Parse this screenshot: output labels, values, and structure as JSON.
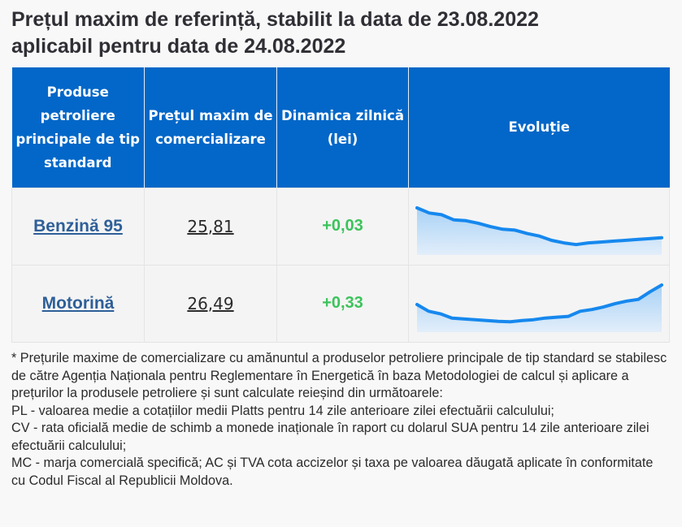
{
  "header": {
    "title_line1": "Prețul maxim de referință, stabilit la data de 23.08.2022",
    "title_line2": "aplicabil pentru data de 24.08.2022"
  },
  "table": {
    "columns": [
      "Produse petroliere principale de tip standard",
      "Prețul maxim de comercializare",
      "Dinamica zilnică (lei)",
      "Evoluție"
    ],
    "rows": [
      {
        "product": "Benzină 95",
        "price": "25,81",
        "delta": "+0,03"
      },
      {
        "product": "Motorină",
        "price": "26,49",
        "delta": "+0,33"
      }
    ]
  },
  "chart_data": [
    {
      "type": "area",
      "title": "Evoluție - Benzină 95",
      "values": [
        29.0,
        28.7,
        28.6,
        28.3,
        28.25,
        28.1,
        27.9,
        27.75,
        27.7,
        27.5,
        27.35,
        27.1,
        26.95,
        26.85,
        26.95,
        27.0,
        27.05,
        27.1,
        27.15,
        27.2,
        27.25
      ]
    },
    {
      "type": "area",
      "title": "Evoluție - Motorină",
      "values": [
        28.0,
        27.6,
        27.45,
        27.2,
        27.15,
        27.1,
        27.05,
        27.0,
        26.98,
        27.05,
        27.1,
        27.2,
        27.25,
        27.3,
        27.6,
        27.7,
        27.85,
        28.05,
        28.2,
        28.3,
        28.75,
        29.15
      ]
    }
  ],
  "styles": {
    "header_bg": "#0267c8",
    "link_color": "#2e5f98",
    "delta_color": "#3cc35b",
    "spark_line": "#1688ee"
  },
  "footnote": {
    "lines": [
      "* Prețurile maxime de comercializare cu amănuntul a produselor petroliere principale de tip standard se stabilesc de către Agenția Naționala pentru Reglementare în Energetică în baza Metodologiei de calcul și aplicare a prețurilor la produsele petroliere și sunt calculate reieșind din următoarele:",
      "PL - valoarea medie a cotațiilor medii Platts pentru 14 zile anterioare zilei efectuării calculului;",
      "CV - rata oficială medie de schimb a monede inaționale în raport cu dolarul SUA pentru 14 zile anterioare zilei efectuării calculului;",
      "MC - marja comercială specifică; AC și TVA cota accizelor și taxa pe valoarea dăugată aplicate în conformitate cu Codul Fiscal al Republicii Moldova."
    ]
  }
}
